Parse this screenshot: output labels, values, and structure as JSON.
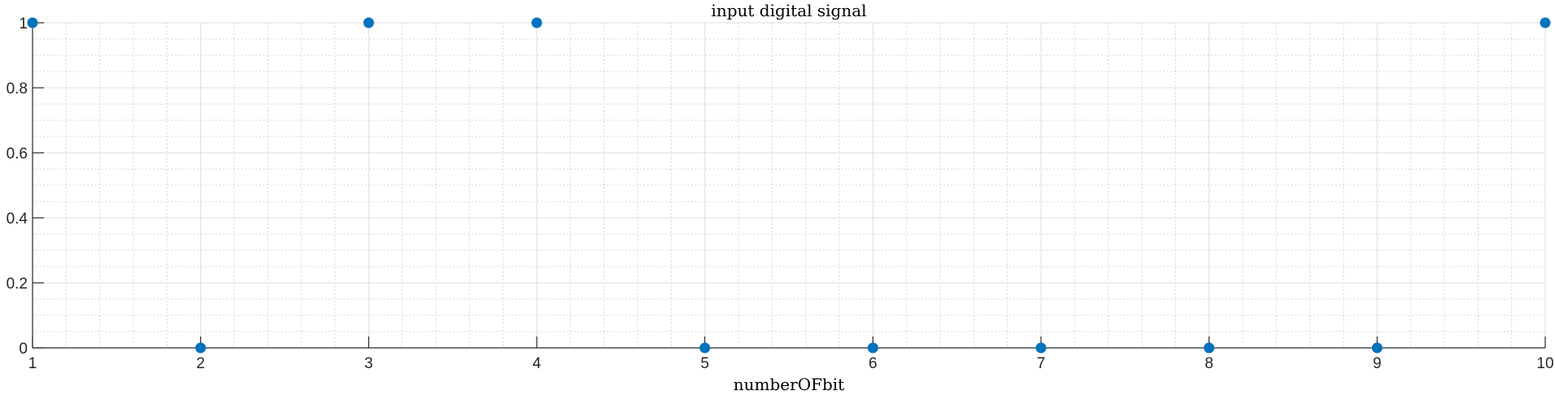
{
  "chart_data": {
    "type": "scatter",
    "title": "input digital signal",
    "xlabel": "numberOFbit",
    "ylabel": "",
    "x": [
      1,
      2,
      3,
      4,
      5,
      6,
      7,
      8,
      9,
      10
    ],
    "y": [
      1,
      0,
      1,
      1,
      0,
      0,
      0,
      0,
      0,
      1
    ],
    "xlim": [
      1,
      10
    ],
    "ylim": [
      0,
      1
    ],
    "xticks": [
      1,
      2,
      3,
      4,
      5,
      6,
      7,
      8,
      9,
      10
    ],
    "xtick_labels": [
      "1",
      "2",
      "3",
      "4",
      "5",
      "6",
      "7",
      "8",
      "9",
      "10"
    ],
    "yticks": [
      0,
      0.2,
      0.4,
      0.6,
      0.8,
      1
    ],
    "ytick_labels": [
      "0",
      "0.2",
      "0.4",
      "0.6",
      "0.8",
      "1"
    ],
    "grid": true,
    "minor_grid": true,
    "marker_color": "#0072BD"
  }
}
